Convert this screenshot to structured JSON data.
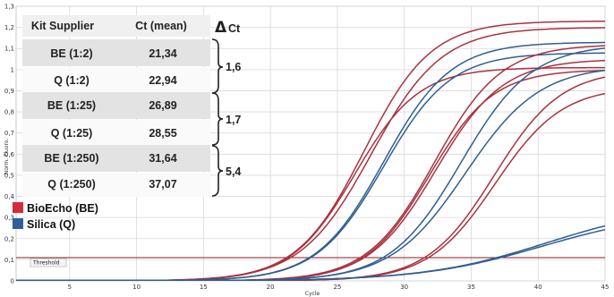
{
  "chart_data": {
    "type": "line",
    "xlabel": "Cycle",
    "ylabel": "Norm. Fluoro.",
    "xlim": [
      1,
      45
    ],
    "ylim": [
      0,
      1.3
    ],
    "x_ticks": [
      5,
      10,
      15,
      20,
      25,
      30,
      35,
      40,
      45
    ],
    "y_ticks": [
      0,
      0.1,
      0.2,
      0.3,
      0.4,
      0.5,
      0.6,
      0.7,
      0.8,
      0.9,
      1.0,
      1.1,
      1.2,
      1.3
    ],
    "y_tick_labels": [
      "0",
      "0,1",
      "0,2",
      "0,3",
      "0,4",
      "0,5",
      "0,6",
      "0,7",
      "0,8",
      "0,9",
      "1",
      "1,1",
      "1,2",
      "1,3"
    ],
    "grid": true,
    "threshold": {
      "label": "Threshold",
      "value": 0.11,
      "color": "#8b1a1a"
    },
    "legend_position": "left",
    "legend": [
      {
        "name": "BioEcho (BE)",
        "color": "#d42a3a"
      },
      {
        "name": "Silica (Q)",
        "color": "#2f5f9b"
      }
    ],
    "series": [
      {
        "kit": "BE",
        "ct": 21.2,
        "plateau": 1.23,
        "slope": 0.4,
        "color": "#a83340"
      },
      {
        "kit": "BE",
        "ct": 21.5,
        "plateau": 1.2,
        "slope": 0.38,
        "color": "#a83340"
      },
      {
        "kit": "BE",
        "ct": 21.3,
        "plateau": 1.01,
        "slope": 0.42,
        "color": "#a83340"
      },
      {
        "kit": "Q",
        "ct": 22.9,
        "plateau": 1.13,
        "slope": 0.4,
        "color": "#2f5f8f"
      },
      {
        "kit": "Q",
        "ct": 23.0,
        "plateau": 1.08,
        "slope": 0.4,
        "color": "#2f5f8f"
      },
      {
        "kit": "BE",
        "ct": 26.7,
        "plateau": 1.12,
        "slope": 0.4,
        "color": "#a83340"
      },
      {
        "kit": "BE",
        "ct": 27.0,
        "plateau": 1.05,
        "slope": 0.4,
        "color": "#a83340"
      },
      {
        "kit": "BE",
        "ct": 26.9,
        "plateau": 1.0,
        "slope": 0.42,
        "color": "#a83340"
      },
      {
        "kit": "Q",
        "ct": 28.4,
        "plateau": 1.12,
        "slope": 0.38,
        "color": "#2f5f8f"
      },
      {
        "kit": "Q",
        "ct": 28.7,
        "plateau": 1.02,
        "slope": 0.36,
        "color": "#2f5f8f"
      },
      {
        "kit": "BE",
        "ct": 31.5,
        "plateau": 1.0,
        "slope": 0.4,
        "color": "#a83340"
      },
      {
        "kit": "BE",
        "ct": 31.8,
        "plateau": 0.92,
        "slope": 0.4,
        "color": "#a83340"
      },
      {
        "kit": "Q",
        "ct": 36.9,
        "plateau": 0.36,
        "slope": 0.22,
        "color": "#2f5f8f"
      },
      {
        "kit": "Q",
        "ct": 37.2,
        "plateau": 0.33,
        "slope": 0.22,
        "color": "#2f5f8f"
      }
    ]
  },
  "table": {
    "headers": [
      "Kit Supplier",
      "Ct (mean)"
    ],
    "rows": [
      {
        "kit": "BE (1:2)",
        "ct": "21,34"
      },
      {
        "kit": "Q (1:2)",
        "ct": "22,94"
      },
      {
        "kit": "BE (1:25)",
        "ct": "26,89"
      },
      {
        "kit": "Q (1:25)",
        "ct": "28,55"
      },
      {
        "kit": "BE (1:250)",
        "ct": "31,64"
      },
      {
        "kit": "Q (1:250)",
        "ct": "37,07"
      }
    ],
    "delta_header_symbol": "Δ",
    "delta_header_text": "Ct",
    "deltas": [
      "1,6",
      "1,7",
      "5,4"
    ]
  }
}
